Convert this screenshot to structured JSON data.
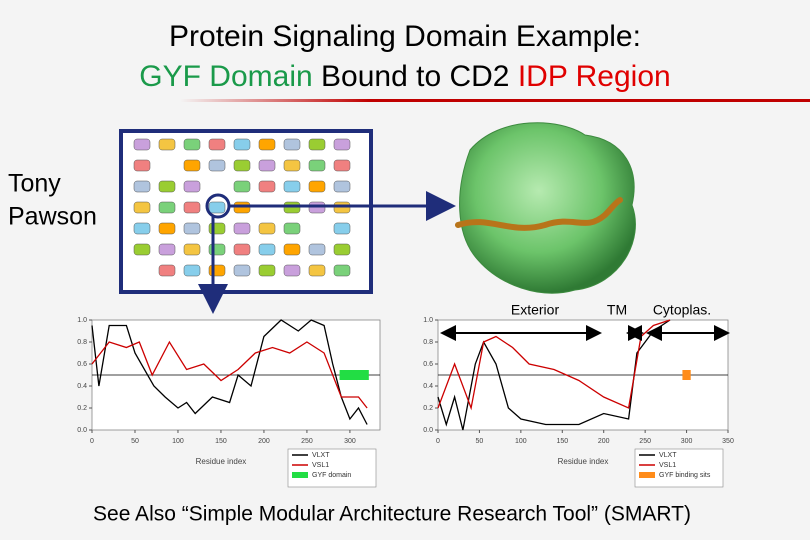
{
  "title": {
    "line1": "Protein Signaling Domain Example:",
    "line2": {
      "part1": "GYF Domain",
      "part2": "Bound to CD2",
      "part3": "IDP Region"
    }
  },
  "person": {
    "first": "Tony",
    "last": "Pawson"
  },
  "topology": {
    "exterior": "Exterior",
    "tm": "TM",
    "cytoplasmic": "Cytoplas."
  },
  "footer": "See Also “Simple Modular Architecture Research Tool” (SMART)",
  "plots": [
    {
      "xlabel": "Residue index",
      "xlim": [
        0,
        335
      ],
      "ylim": [
        0,
        1
      ],
      "xticks": [
        0,
        50,
        100,
        150,
        200,
        250,
        300
      ],
      "yticks": [
        {
          "value": 0,
          "label": "0.0"
        },
        {
          "value": 0.2,
          "label": "0.2"
        },
        {
          "value": 0.4,
          "label": "0.4"
        },
        {
          "value": 0.6,
          "label": "0.6"
        },
        {
          "value": 0.8,
          "label": "0.8"
        },
        {
          "value": 1,
          "label": "1.0"
        }
      ],
      "threshold": 0.5,
      "series": [
        {
          "name": "VLXT",
          "color": "#000000",
          "x": [
            0,
            8,
            20,
            40,
            50,
            72,
            85,
            100,
            110,
            120,
            140,
            160,
            170,
            185,
            200,
            220,
            240,
            255,
            270,
            280,
            290,
            300,
            310,
            320
          ],
          "values": [
            0.95,
            0.4,
            0.95,
            0.95,
            0.7,
            0.4,
            0.3,
            0.2,
            0.25,
            0.15,
            0.3,
            0.25,
            0.5,
            0.4,
            0.85,
            1.0,
            0.9,
            1.0,
            0.95,
            0.6,
            0.3,
            0.1,
            0.2,
            0.05
          ]
        },
        {
          "name": "VSL1",
          "color": "#cc0000",
          "x": [
            0,
            20,
            40,
            55,
            70,
            90,
            110,
            130,
            150,
            170,
            190,
            210,
            230,
            250,
            270,
            290,
            310,
            320
          ],
          "values": [
            0.6,
            0.8,
            0.75,
            0.8,
            0.5,
            0.8,
            0.55,
            0.6,
            0.45,
            0.55,
            0.7,
            0.75,
            0.7,
            0.8,
            0.7,
            0.3,
            0.3,
            0.2
          ]
        }
      ],
      "region": {
        "name": "GYF domain",
        "color": "#22dd44",
        "start": 288,
        "end": 322,
        "y": 0.5
      }
    },
    {
      "xlabel": "Residue index",
      "xlim": [
        0,
        350
      ],
      "ylim": [
        0,
        1
      ],
      "xticks": [
        0,
        50,
        100,
        150,
        200,
        250,
        300,
        350
      ],
      "yticks": [
        {
          "value": 0,
          "label": "0.0"
        },
        {
          "value": 0.2,
          "label": "0.2"
        },
        {
          "value": 0.4,
          "label": "0.4"
        },
        {
          "value": 0.6,
          "label": "0.6"
        },
        {
          "value": 0.8,
          "label": "0.8"
        },
        {
          "value": 1,
          "label": "1.0"
        }
      ],
      "threshold": 0.5,
      "series": [
        {
          "name": "VLXT",
          "color": "#000000",
          "x": [
            0,
            10,
            20,
            30,
            45,
            55,
            70,
            85,
            100,
            130,
            170,
            200,
            230,
            240,
            260,
            280
          ],
          "values": [
            0.3,
            0.05,
            0.3,
            0.0,
            0.6,
            0.8,
            0.6,
            0.2,
            0.1,
            0.05,
            0.05,
            0.15,
            0.1,
            0.7,
            0.9,
            1.0
          ]
        },
        {
          "name": "VSL1",
          "color": "#cc0000",
          "x": [
            0,
            20,
            40,
            55,
            70,
            90,
            110,
            140,
            170,
            200,
            230,
            245,
            260,
            280
          ],
          "values": [
            0.2,
            0.6,
            0.2,
            0.8,
            0.85,
            0.75,
            0.6,
            0.55,
            0.45,
            0.3,
            0.2,
            0.85,
            0.95,
            1.0
          ]
        }
      ],
      "region": {
        "name": "GYF binding sits",
        "color": "#ff8c1a",
        "start": 295,
        "end": 305,
        "y": 0.5
      }
    }
  ]
}
